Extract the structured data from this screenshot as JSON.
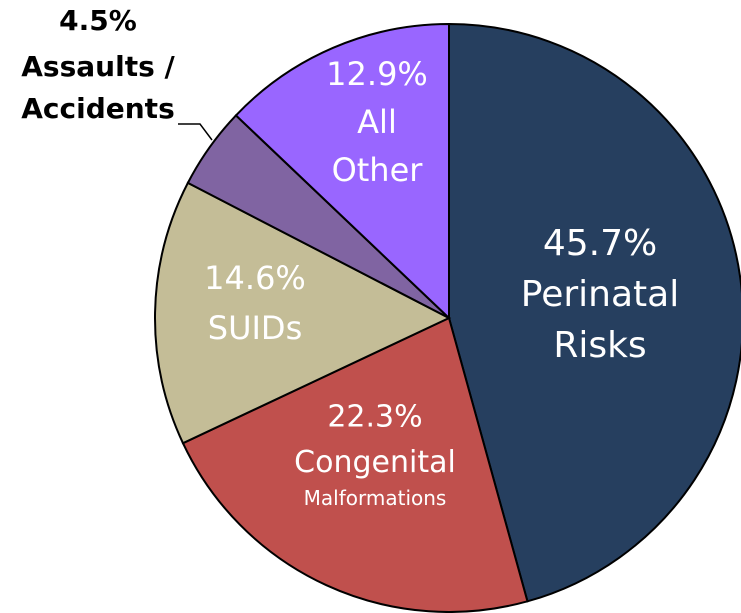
{
  "chart_data": {
    "type": "pie",
    "categories": [
      "Perinatal Risks",
      "Congenital Malformations",
      "SUIDs",
      "Assaults / Accidents",
      "All Other"
    ],
    "values": [
      45.7,
      22.3,
      14.6,
      4.5,
      12.9
    ],
    "value_labels": [
      "45.7%",
      "22.3%",
      "14.6%",
      "4.5%",
      "12.9%"
    ],
    "colors": [
      "#263f5f",
      "#c0504d",
      "#c4bd97",
      "#8064a2",
      "#9966ff"
    ]
  }
}
